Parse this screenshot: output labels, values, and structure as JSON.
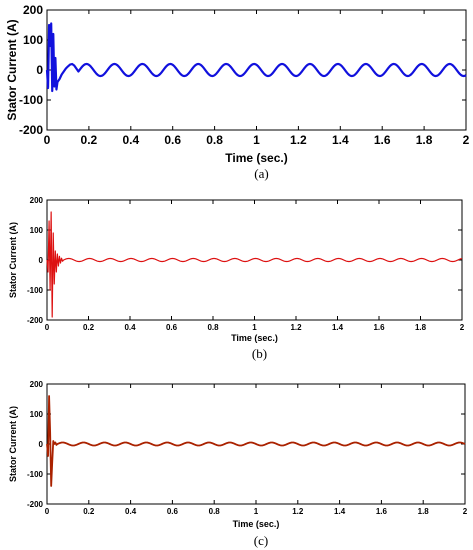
{
  "chart_data": [
    {
      "type": "line",
      "caption": "(a)",
      "xlabel": "Time (sec.)",
      "ylabel": "Stator Current (A)",
      "xlim": [
        0,
        2
      ],
      "ylim": [
        -200,
        200
      ],
      "xticks": [
        0,
        0.2,
        0.4,
        0.6,
        0.8,
        1,
        1.2,
        1.4,
        1.6,
        1.8,
        2
      ],
      "yticks": [
        200,
        100,
        0,
        -100,
        -200
      ],
      "xtick_labels": [
        "0",
        "0.2",
        "0.4",
        "0.6",
        "0.8",
        "1",
        "1.2",
        "1.4",
        "1.6",
        "1.8",
        "2"
      ],
      "ytick_labels": [
        "200",
        "100",
        "0",
        "-100",
        "-200"
      ],
      "color": "#1111dd",
      "series": [
        {
          "x": [
            0,
            0.005,
            0.01,
            0.015,
            0.02,
            0.025,
            0.03,
            0.035,
            0.04,
            0.045,
            0.05,
            0.06,
            0.07,
            0.08,
            0.09,
            0.1,
            0.11,
            0.12,
            0.13,
            0.14,
            0.15
          ],
          "values": [
            0,
            -60,
            150,
            80,
            155,
            -70,
            120,
            -55,
            40,
            -65,
            -40,
            -30,
            -15,
            -5,
            5,
            12,
            18,
            20,
            15,
            5,
            -5
          ]
        }
      ],
      "steady_state": {
        "amplitude": 20,
        "frequency_hz": 7.5,
        "start": 0.15
      }
    },
    {
      "type": "line",
      "caption": "(b)",
      "xlabel": "Time (sec.)",
      "ylabel": "Stator Current (A)",
      "xlim": [
        0,
        2
      ],
      "ylim": [
        -200,
        200
      ],
      "xticks": [
        0,
        0.2,
        0.4,
        0.6,
        0.8,
        1,
        1.2,
        1.4,
        1.6,
        1.8,
        2
      ],
      "yticks": [
        200,
        100,
        0,
        -100,
        -200
      ],
      "xtick_labels": [
        "0",
        "0.2",
        "0.4",
        "0.6",
        "0.8",
        "1",
        "1.2",
        "1.4",
        "1.6",
        "1.8",
        "2"
      ],
      "ytick_labels": [
        "200",
        "100",
        "0",
        "-100",
        "-200"
      ],
      "color": "#dd1111",
      "series": [
        {
          "x": [
            0,
            0.005,
            0.01,
            0.015,
            0.02,
            0.025,
            0.03,
            0.035,
            0.04,
            0.045,
            0.05,
            0.055,
            0.06,
            0.065,
            0.07,
            0.075,
            0.08
          ],
          "values": [
            0,
            -40,
            130,
            -100,
            160,
            -190,
            90,
            -80,
            30,
            -40,
            20,
            -20,
            12,
            -10,
            6,
            -4,
            0
          ]
        }
      ],
      "steady_state": {
        "amplitude": 5,
        "frequency_hz": 10,
        "start": 0.08
      }
    },
    {
      "type": "line",
      "caption": "(c)",
      "xlabel": "Time (sec.)",
      "ylabel": "Stator Current (A)",
      "xlim": [
        0,
        2
      ],
      "ylim": [
        -200,
        200
      ],
      "xticks": [
        0,
        0.2,
        0.4,
        0.6,
        0.8,
        1,
        1.2,
        1.4,
        1.6,
        1.8,
        2
      ],
      "yticks": [
        200,
        100,
        0,
        -100,
        -200
      ],
      "xtick_labels": [
        "0",
        "0.2",
        "0.4",
        "0.6",
        "0.8",
        "1",
        "1.2",
        "1.4",
        "1.6",
        "1.8",
        "2"
      ],
      "ytick_labels": [
        "200",
        "100",
        "0",
        "-100",
        "-200"
      ],
      "color": "#aa2200",
      "series": [
        {
          "x": [
            0,
            0.005,
            0.01,
            0.015,
            0.02,
            0.025,
            0.03,
            0.035,
            0.04,
            0.045,
            0.05
          ],
          "values": [
            0,
            -40,
            160,
            40,
            -140,
            -60,
            10,
            0,
            5,
            -3,
            0
          ]
        }
      ],
      "steady_state": {
        "amplitude": 5,
        "frequency_hz": 10,
        "start": 0.05
      }
    }
  ]
}
